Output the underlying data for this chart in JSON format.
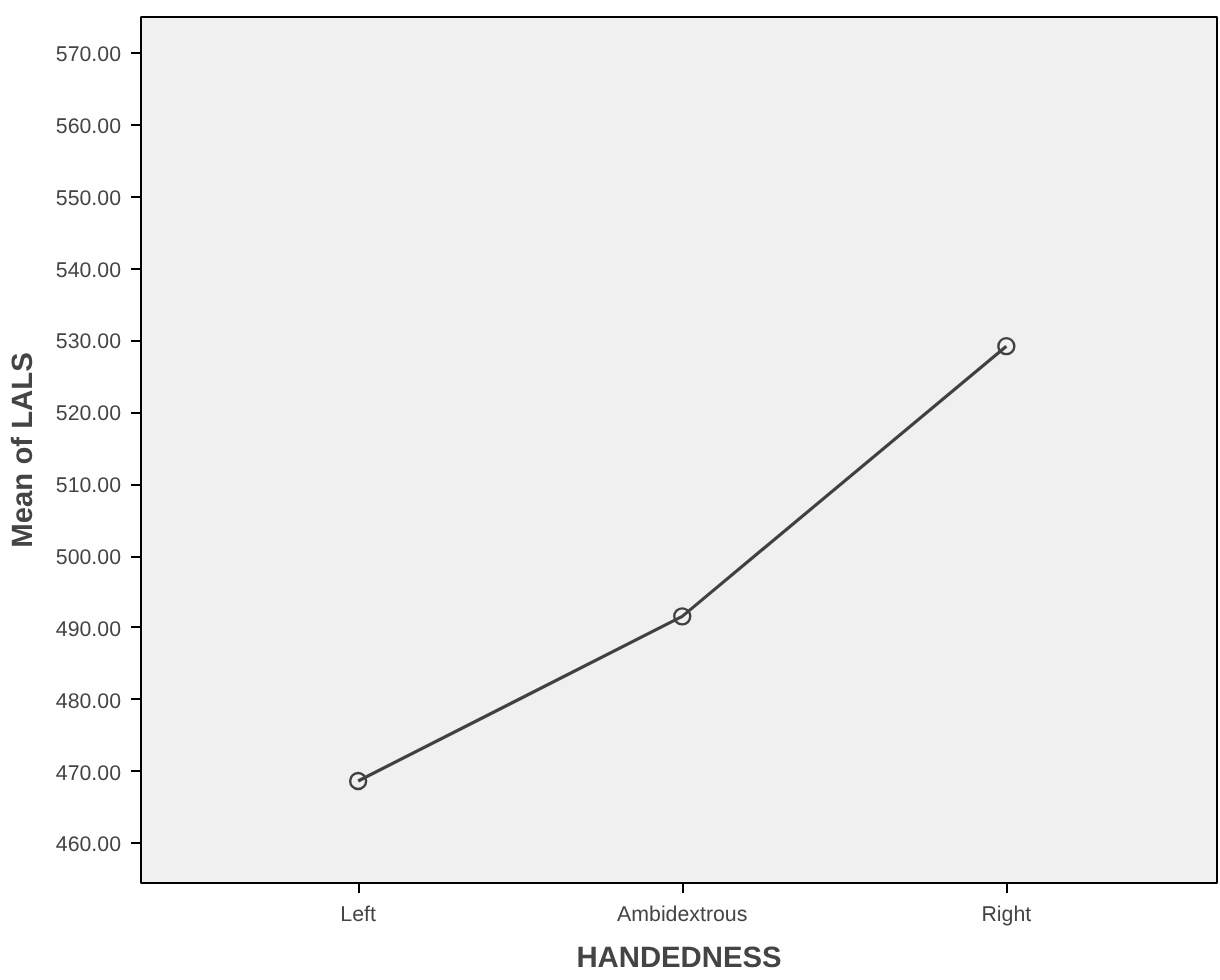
{
  "chart_data": {
    "type": "line",
    "xlabel": "HANDEDNESS",
    "ylabel": "Mean of LALS",
    "categories": [
      "Left",
      "Ambidextrous",
      "Right"
    ],
    "series": [
      {
        "color": "#404040",
        "values": [
          468.7,
          491.6,
          529.2
        ]
      }
    ],
    "ylim": [
      454.5,
      575
    ],
    "yticks": [
      {
        "value": 460,
        "label": "460.00"
      },
      {
        "value": 470,
        "label": "470.00"
      },
      {
        "value": 480,
        "label": "480.00"
      },
      {
        "value": 490,
        "label": "490.00"
      },
      {
        "value": 500,
        "label": "500.00"
      },
      {
        "value": 510,
        "label": "510.00"
      },
      {
        "value": 520,
        "label": "520.00"
      },
      {
        "value": 530,
        "label": "530.00"
      },
      {
        "value": 540,
        "label": "540.00"
      },
      {
        "value": 550,
        "label": "550.00"
      },
      {
        "value": 560,
        "label": "560.00"
      },
      {
        "value": 570,
        "label": "570.00"
      }
    ],
    "grid": false,
    "marker": "circle",
    "line_style": "solid"
  }
}
